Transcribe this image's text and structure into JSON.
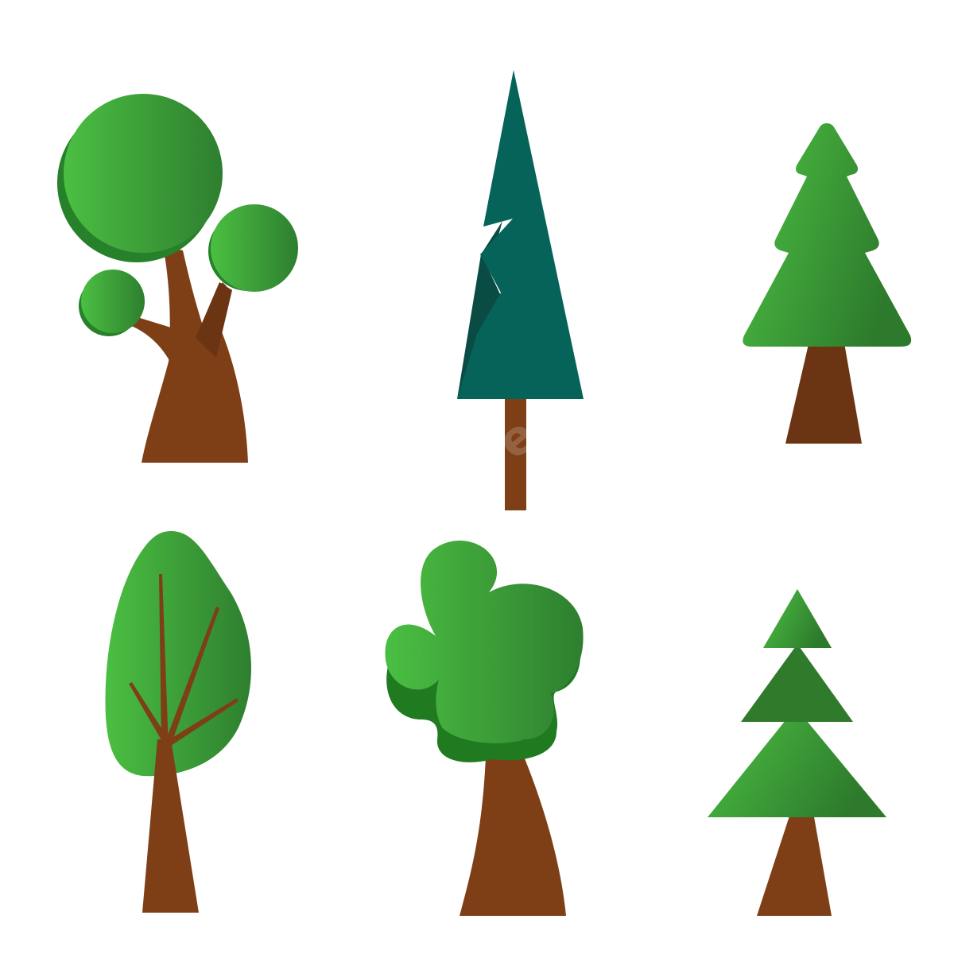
{
  "scene": {
    "background": "#ffffff",
    "description_items": [
      "round-canopy-tree",
      "tall-spruce-tree",
      "pine-tree",
      "oval-leaf-tree",
      "cloud-canopy-tree",
      "layered-fir-tree"
    ]
  },
  "colors": {
    "trunk": "#7e3f17",
    "trunk_dark": "#6b3412",
    "leaf_light": "#4bbf42",
    "leaf_dark": "#2e7f2f",
    "leaf_shadow": "#27802a",
    "spruce": "#06635a",
    "spruce_shadow": "#0a4b44"
  },
  "watermark": {
    "text": "pngtree"
  }
}
